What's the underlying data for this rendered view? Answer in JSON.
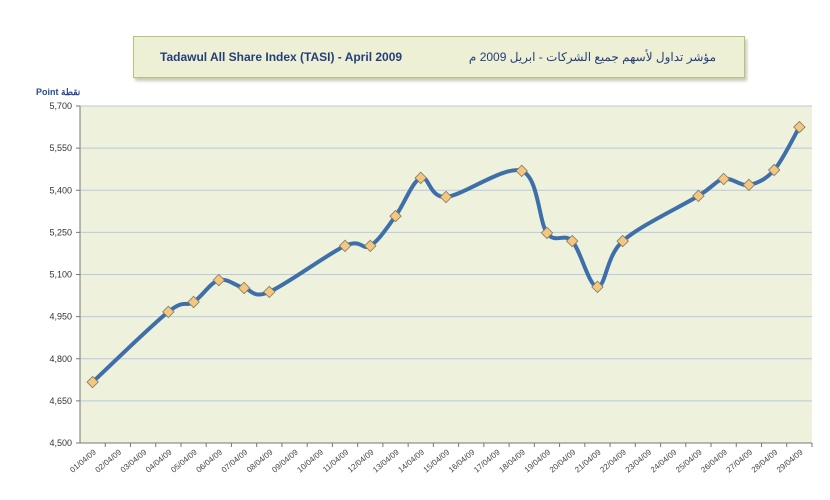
{
  "chart_data": {
    "type": "line",
    "title": "Tadawul All Share Index (TASI) - April 2009",
    "title_arabic": "مؤشر تداول لأسهم جميع الشركات - ابريل 2009 م",
    "ylabel": "Point نقطة",
    "xlabel": "",
    "ylim": [
      4500,
      5700
    ],
    "yticks": [
      "4,500",
      "4,650",
      "4,800",
      "4,950",
      "5,100",
      "5,250",
      "5,400",
      "5,550",
      "5,700"
    ],
    "ytick_values": [
      4500,
      4650,
      4800,
      4950,
      5100,
      5250,
      5400,
      5550,
      5700
    ],
    "categories": [
      "01/04/09",
      "02/04/09",
      "03/04/09",
      "04/04/09",
      "05/04/09",
      "06/04/09",
      "07/04/09",
      "08/04/09",
      "09/04/09",
      "10/04/09",
      "11/04/09",
      "12/04/09",
      "13/04/09",
      "14/04/09",
      "15/04/09",
      "16/04/09",
      "17/04/09",
      "18/04/09",
      "19/04/09",
      "20/04/09",
      "21/04/09",
      "22/04/09",
      "23/04/09",
      "24/04/09",
      "25/04/09",
      "26/04/09",
      "27/04/09",
      "28/04/09",
      "29/04/09"
    ],
    "values": [
      4717,
      null,
      null,
      4967,
      5002,
      5080,
      5052,
      5038,
      null,
      null,
      5202,
      5202,
      5308,
      5444,
      5376,
      null,
      null,
      5469,
      5248,
      5219,
      5056,
      5219,
      null,
      null,
      5380,
      5440,
      5419,
      5472,
      5625
    ],
    "grid": true,
    "legend": "none",
    "colors": {
      "line": "#3f6fa8",
      "marker": "#f5c77e",
      "plot_bg": "#eef1dc",
      "grid": "#b9c9e3"
    }
  }
}
